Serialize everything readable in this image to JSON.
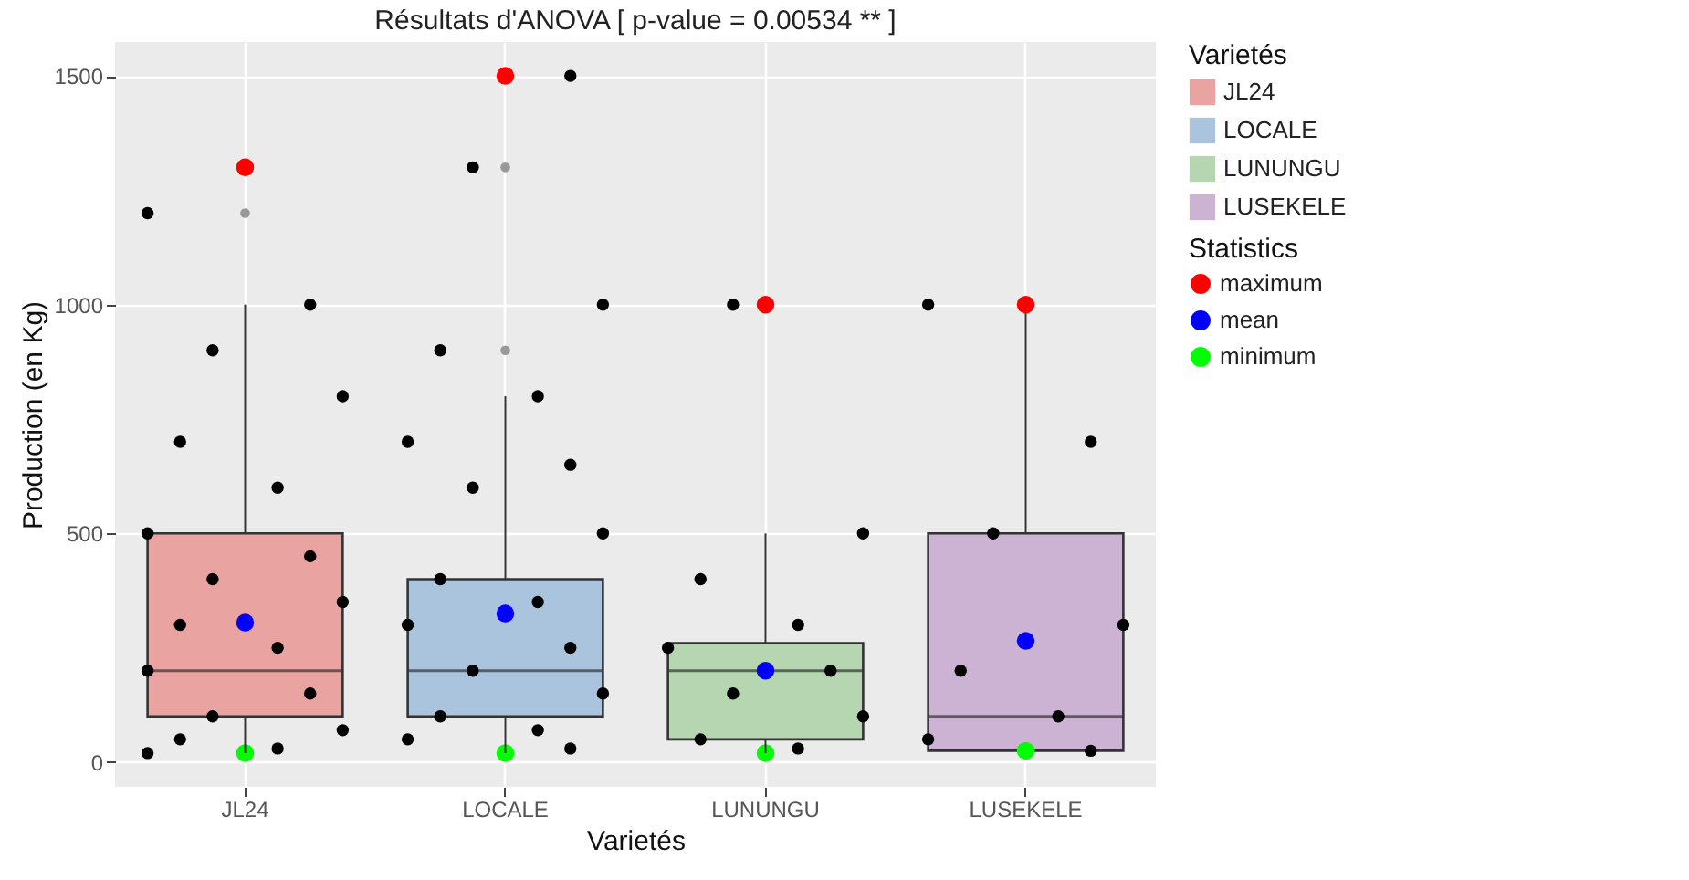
{
  "chart_data": {
    "type": "box",
    "title": "Résultats d'ANOVA [ p-value = 0.00534 ** ]",
    "xlabel": "Varietés",
    "ylabel": "Production (en Kg)",
    "legend_title": "Varietés",
    "annotations": [
      "Statistics"
    ],
    "categories": [
      "JL24",
      "LOCALE",
      "LUNUNGU",
      "LUSEKELE"
    ],
    "colors": [
      "#e9a4a2",
      "#a9c4dc",
      "#b5d6b0",
      "#ccb3d3"
    ],
    "boxes": [
      {
        "low": 20,
        "q1": 100,
        "median": 200,
        "q3": 500,
        "high": 1000,
        "outliers": [
          1200
        ]
      },
      {
        "low": 20,
        "q1": 100,
        "median": 200,
        "q3": 400,
        "high": 800,
        "outliers": [
          900,
          1300
        ]
      },
      {
        "low": 20,
        "q1": 50,
        "median": 200,
        "q3": 260,
        "high": 500
      },
      {
        "low": 25,
        "q1": 25,
        "median": 100,
        "q3": 500,
        "high": 1000
      }
    ],
    "ylim": [
      -54,
      1574
    ],
    "yticks": [
      0,
      500,
      1000,
      1500
    ],
    "grid": true,
    "legend": "right",
    "marker": "circle",
    "series": [
      {
        "type": "scatter",
        "color": "#000000",
        "x": [
          "JL24",
          "JL24",
          "JL24",
          "JL24",
          "JL24",
          "JL24",
          "JL24",
          "JL24",
          "JL24",
          "JL24",
          "JL24",
          "JL24",
          "JL24",
          "JL24",
          "JL24",
          "JL24",
          "JL24",
          "JL24",
          "JL24",
          "LOCALE",
          "LOCALE",
          "LOCALE",
          "LOCALE",
          "LOCALE",
          "LOCALE",
          "LOCALE",
          "LOCALE",
          "LOCALE",
          "LOCALE",
          "LOCALE",
          "LOCALE",
          "LOCALE",
          "LOCALE",
          "LOCALE",
          "LOCALE",
          "LOCALE",
          "LOCALE",
          "LOCALE",
          "LUNUNGU",
          "LUNUNGU",
          "LUNUNGU",
          "LUNUNGU",
          "LUNUNGU",
          "LUNUNGU",
          "LUNUNGU",
          "LUNUNGU",
          "LUNUNGU",
          "LUNUNGU",
          "LUSEKELE",
          "LUSEKELE",
          "LUSEKELE",
          "LUSEKELE",
          "LUSEKELE",
          "LUSEKELE",
          "LUSEKELE",
          "LUSEKELE"
        ],
        "values": [
          1200,
          1000,
          900,
          800,
          700,
          600,
          500,
          450,
          400,
          350,
          300,
          250,
          200,
          150,
          100,
          70,
          50,
          30,
          20,
          1500,
          1300,
          1000,
          900,
          800,
          700,
          650,
          600,
          500,
          400,
          350,
          300,
          250,
          200,
          150,
          100,
          70,
          50,
          30,
          1000,
          500,
          400,
          300,
          250,
          200,
          150,
          100,
          50,
          30,
          1000,
          700,
          500,
          300,
          200,
          100,
          50,
          25
        ]
      },
      {
        "type": "scatter",
        "name": "maximum",
        "color": "#ff0000",
        "x": [
          "JL24",
          "LOCALE",
          "LUNUNGU",
          "LUSEKELE"
        ],
        "values": [
          1300,
          1500,
          1000,
          1000
        ]
      },
      {
        "type": "scatter",
        "name": "mean",
        "color": "#0000ff",
        "x": [
          "JL24",
          "LOCALE",
          "LUNUNGU",
          "LUSEKELE"
        ],
        "values": [
          305,
          325,
          200,
          265
        ]
      },
      {
        "type": "scatter",
        "name": "minimum",
        "color": "#00ff00",
        "x": [
          "JL24",
          "LOCALE",
          "LUNUNGU",
          "LUSEKELE"
        ],
        "values": [
          20,
          20,
          20,
          25
        ]
      }
    ]
  }
}
